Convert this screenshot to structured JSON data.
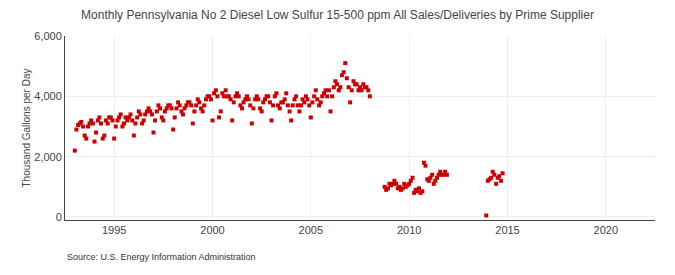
{
  "chart_data": {
    "type": "scatter",
    "title": "Monthly Pennsylvania No 2 Diesel Low Sulfur 15-500 ppm All Sales/Deliveries by Prime Supplier",
    "ylabel": "Thousand Gallons per Day",
    "annotations": [
      "Source: U.S. Energy Information Administration"
    ],
    "color": "#cc0000",
    "marker": "square",
    "grid": true,
    "xlim": [
      1992.5,
      2022.5
    ],
    "xticks": [
      1995,
      2000,
      2005,
      2010,
      2015,
      2020
    ],
    "ylim": [
      -100,
      6000
    ],
    "yticks": [
      0,
      {
        "value": 2000,
        "label": "2,000"
      },
      {
        "value": 4000,
        "label": "4,000"
      },
      {
        "value": 6000,
        "label": "6,000"
      }
    ],
    "x": [
      1993.0,
      1993.08,
      1993.17,
      1993.25,
      1993.33,
      1993.42,
      1993.5,
      1993.58,
      1993.67,
      1993.75,
      1993.83,
      1993.92,
      1994.0,
      1994.08,
      1994.17,
      1994.25,
      1994.33,
      1994.42,
      1994.5,
      1994.58,
      1994.67,
      1994.75,
      1994.83,
      1994.92,
      1995.0,
      1995.08,
      1995.17,
      1995.25,
      1995.33,
      1995.42,
      1995.5,
      1995.58,
      1995.67,
      1995.75,
      1995.83,
      1995.92,
      1996.0,
      1996.08,
      1996.17,
      1996.25,
      1996.33,
      1996.42,
      1996.5,
      1996.58,
      1996.67,
      1996.75,
      1996.83,
      1996.92,
      1997.0,
      1997.08,
      1997.17,
      1997.25,
      1997.33,
      1997.42,
      1997.5,
      1997.58,
      1997.67,
      1997.75,
      1997.83,
      1997.92,
      1998.0,
      1998.08,
      1998.17,
      1998.25,
      1998.33,
      1998.42,
      1998.5,
      1998.58,
      1998.67,
      1998.75,
      1998.83,
      1998.92,
      1999.0,
      1999.08,
      1999.17,
      1999.25,
      1999.33,
      1999.42,
      1999.5,
      1999.58,
      1999.67,
      1999.75,
      1999.83,
      1999.92,
      2000.0,
      2000.08,
      2000.17,
      2000.25,
      2000.33,
      2000.42,
      2000.5,
      2000.58,
      2000.67,
      2000.75,
      2000.83,
      2000.92,
      2001.0,
      2001.08,
      2001.17,
      2001.25,
      2001.33,
      2001.42,
      2001.5,
      2001.58,
      2001.67,
      2001.75,
      2001.83,
      2001.92,
      2002.0,
      2002.08,
      2002.17,
      2002.25,
      2002.33,
      2002.42,
      2002.5,
      2002.58,
      2002.67,
      2002.75,
      2002.83,
      2002.92,
      2003.0,
      2003.08,
      2003.17,
      2003.25,
      2003.33,
      2003.42,
      2003.5,
      2003.58,
      2003.67,
      2003.75,
      2003.83,
      2003.92,
      2004.0,
      2004.08,
      2004.17,
      2004.25,
      2004.33,
      2004.42,
      2004.5,
      2004.58,
      2004.67,
      2004.75,
      2004.83,
      2004.92,
      2005.0,
      2005.08,
      2005.17,
      2005.25,
      2005.33,
      2005.42,
      2005.5,
      2005.58,
      2005.67,
      2005.75,
      2005.83,
      2005.92,
      2006.0,
      2006.08,
      2006.17,
      2006.25,
      2006.33,
      2006.42,
      2006.5,
      2006.58,
      2006.67,
      2006.75,
      2006.83,
      2006.92,
      2007.0,
      2007.08,
      2007.17,
      2007.25,
      2007.33,
      2007.42,
      2007.5,
      2007.58,
      2007.67,
      2007.75,
      2007.83,
      2007.92,
      2008.0,
      2008.75,
      2008.83,
      2008.92,
      2009.0,
      2009.08,
      2009.17,
      2009.25,
      2009.33,
      2009.42,
      2009.5,
      2009.58,
      2009.67,
      2009.75,
      2009.83,
      2009.92,
      2010.0,
      2010.08,
      2010.17,
      2010.25,
      2010.33,
      2010.42,
      2010.5,
      2010.58,
      2010.67,
      2010.75,
      2010.83,
      2010.92,
      2011.0,
      2011.08,
      2011.17,
      2011.25,
      2011.33,
      2011.42,
      2011.5,
      2011.58,
      2011.67,
      2011.75,
      2011.83,
      2011.92,
      2013.92,
      2014.0,
      2014.08,
      2014.17,
      2014.25,
      2014.33,
      2014.42,
      2014.5,
      2014.58,
      2014.67,
      2014.75
    ],
    "values": [
      2200,
      2900,
      3050,
      3100,
      3150,
      3000,
      2700,
      2600,
      3000,
      3100,
      3200,
      3100,
      2500,
      2800,
      3200,
      3300,
      3100,
      2600,
      2700,
      3200,
      3100,
      3300,
      3300,
      3200,
      2600,
      3000,
      3200,
      3300,
      3400,
      3000,
      3100,
      3300,
      3200,
      3300,
      3400,
      3200,
      2700,
      3100,
      3300,
      3500,
      3400,
      3100,
      3200,
      3400,
      3500,
      3600,
      3500,
      3400,
      2800,
      3200,
      3500,
      3700,
      3600,
      3300,
      3200,
      3500,
      3600,
      3700,
      3700,
      3600,
      2900,
      3300,
      3600,
      3800,
      3700,
      3500,
      3400,
      3600,
      3700,
      3800,
      3800,
      3700,
      3100,
      3500,
      3700,
      3900,
      3800,
      3600,
      3500,
      3700,
      3900,
      4000,
      4000,
      3900,
      3200,
      4100,
      4200,
      4000,
      3300,
      3500,
      4100,
      4000,
      4200,
      4000,
      4000,
      3900,
      3200,
      3800,
      4000,
      4100,
      4000,
      3700,
      3600,
      3800,
      3900,
      4000,
      3900,
      3700,
      3100,
      3600,
      3900,
      4000,
      3900,
      3600,
      3500,
      3800,
      3900,
      4000,
      4000,
      3800,
      3200,
      3700,
      4000,
      4100,
      3700,
      3600,
      3800,
      3800,
      3900,
      4100,
      3700,
      3500,
      3200,
      3700,
      3900,
      4000,
      3700,
      3500,
      3700,
      3900,
      3800,
      4000,
      3900,
      3700,
      3300,
      3800,
      4000,
      4200,
      3900,
      3700,
      3800,
      4000,
      4100,
      4200,
      4000,
      4200,
      3500,
      4000,
      4300,
      4500,
      4400,
      4200,
      4300,
      4700,
      4800,
      5100,
      4600,
      4300,
      3800,
      4200,
      4500,
      4400,
      4400,
      4200,
      4300,
      4200,
      4400,
      4300,
      4300,
      4200,
      4000,
      1000,
      900,
      950,
      1100,
      1050,
      1100,
      1200,
      1100,
      950,
      1000,
      900,
      950,
      1100,
      1000,
      1050,
      1100,
      1200,
      1300,
      800,
      900,
      850,
      950,
      800,
      850,
      1800,
      1700,
      1250,
      1200,
      1300,
      1400,
      1100,
      1200,
      1300,
      1400,
      1500,
      1400,
      1400,
      1500,
      1400,
      50,
      1200,
      1250,
      1300,
      1500,
      1400,
      1100,
      1300,
      1350,
      1200,
      1450
    ]
  }
}
